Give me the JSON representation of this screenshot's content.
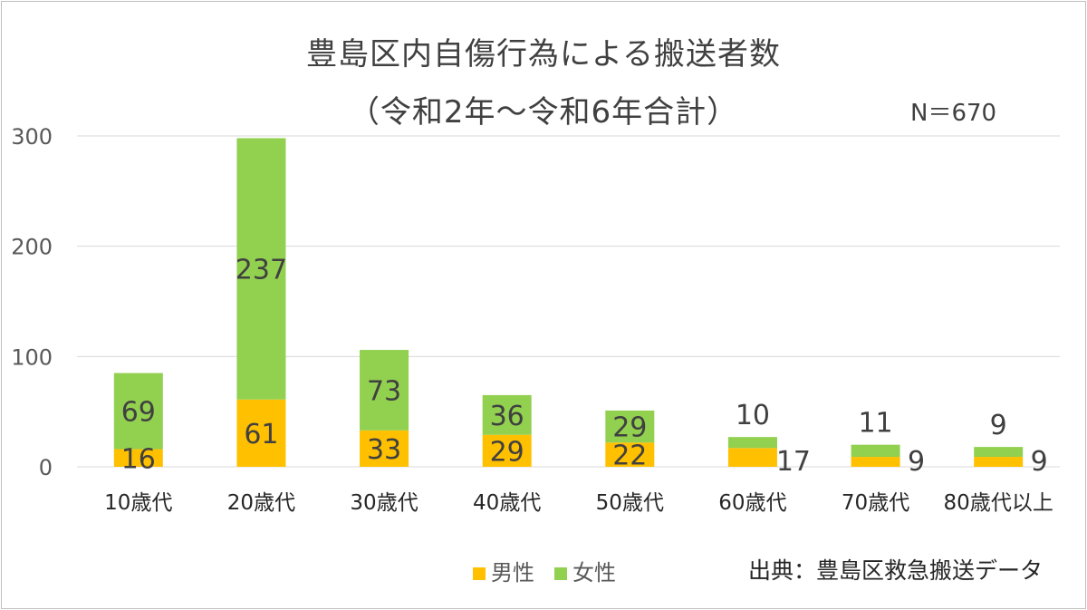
{
  "title": "豊島区内自傷行為による搬送者数",
  "subtitle": "（令和2年～令和6年合計）",
  "n_label": "N＝670",
  "source": "出典：豊島区救急搬送データ",
  "colors": {
    "male": "#FFC000",
    "female": "#92D050",
    "grid": "#d9d9d9",
    "axis_text": "#595959",
    "label_text": "#404040"
  },
  "chart_data": {
    "type": "bar",
    "stacked": true,
    "categories": [
      "10歳代",
      "20歳代",
      "30歳代",
      "40歳代",
      "50歳代",
      "60歳代",
      "70歳代",
      "80歳代以上"
    ],
    "series": [
      {
        "name": "男性",
        "values": [
          16,
          61,
          33,
          29,
          22,
          17,
          9,
          9
        ]
      },
      {
        "name": "女性",
        "values": [
          69,
          237,
          73,
          36,
          29,
          10,
          11,
          9
        ]
      }
    ],
    "yticks": [
      0,
      100,
      200,
      300
    ],
    "ylim": [
      0,
      300
    ],
    "grid": true,
    "legend": "bottom"
  }
}
